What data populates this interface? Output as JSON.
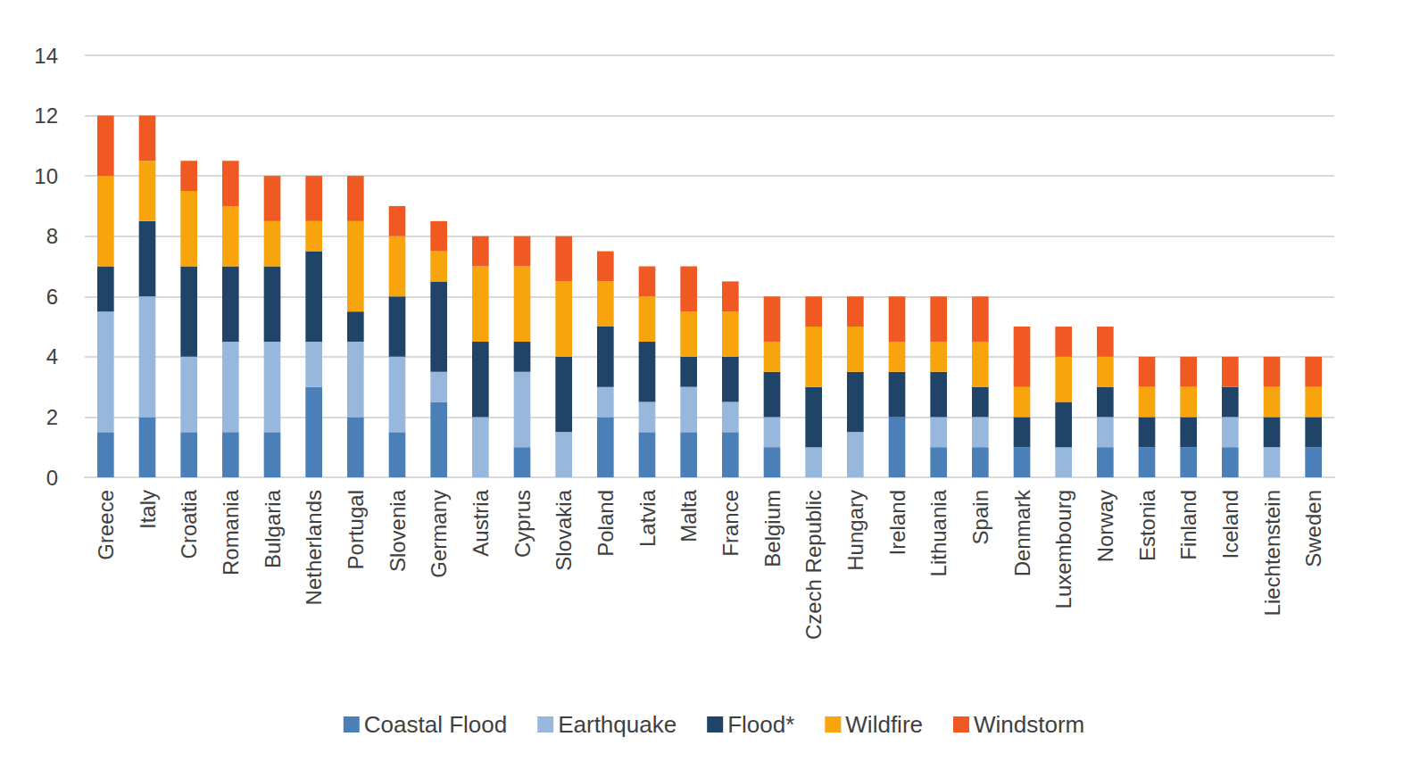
{
  "chart_data": {
    "type": "bar",
    "stacked": true,
    "grid": true,
    "legend": "bottom",
    "categories": [
      "Greece",
      "Italy",
      "Croatia",
      "Romania",
      "Bulgaria",
      "Netherlands",
      "Portugal",
      "Slovenia",
      "Germany",
      "Austria",
      "Cyprus",
      "Slovakia",
      "Poland",
      "Latvia",
      "Malta",
      "France",
      "Belgium",
      "Czech Republic",
      "Hungary",
      "Ireland",
      "Lithuania",
      "Spain",
      "Denmark",
      "Luxembourg",
      "Norway",
      "Estonia",
      "Finland",
      "Iceland",
      "Liechtenstein",
      "Sweden"
    ],
    "ylim": [
      0,
      14
    ],
    "yticks": [
      0,
      2,
      4,
      6,
      8,
      10,
      12,
      14
    ],
    "series": [
      {
        "name": "Coastal Flood",
        "color": "#4a7fb8",
        "values": [
          1.5,
          2,
          1.5,
          1.5,
          1.5,
          3,
          2,
          1.5,
          2.5,
          0,
          1,
          0,
          2,
          1.5,
          1.5,
          1.5,
          1,
          0,
          0,
          2,
          1,
          1,
          1,
          0,
          1,
          1,
          1,
          1,
          0,
          1
        ]
      },
      {
        "name": "Earthquake",
        "color": "#97b7dc",
        "values": [
          4,
          4,
          2.5,
          3,
          3,
          1.5,
          2.5,
          2.5,
          1,
          2,
          2.5,
          1.5,
          1,
          1,
          1.5,
          1,
          1,
          1,
          1.5,
          0,
          1,
          1,
          0,
          1,
          1,
          0,
          0,
          1,
          1,
          0
        ]
      },
      {
        "name": "Flood*",
        "color": "#1f4467",
        "values": [
          1.5,
          2.5,
          3,
          2.5,
          2.5,
          3,
          1,
          2,
          3,
          2.5,
          1,
          2.5,
          2,
          2,
          1,
          1.5,
          1.5,
          2,
          2,
          1.5,
          1.5,
          1,
          1,
          1.5,
          1,
          1,
          1,
          1,
          1,
          1
        ]
      },
      {
        "name": "Wildfire",
        "color": "#f8a40c",
        "values": [
          3,
          2,
          2.5,
          2,
          1.5,
          1,
          3,
          2,
          1,
          2.5,
          2.5,
          2.5,
          1.5,
          1.5,
          1.5,
          1.5,
          1,
          2,
          1.5,
          1,
          1,
          1.5,
          1,
          1.5,
          1,
          1,
          1,
          0,
          1,
          1
        ]
      },
      {
        "name": "Windstorm",
        "color": "#f05a22",
        "values": [
          2,
          1.5,
          1,
          1.5,
          1.5,
          1.5,
          1.5,
          1,
          1,
          1,
          1,
          1.5,
          1,
          1,
          1.5,
          1,
          1.5,
          1,
          1,
          1.5,
          1.5,
          1.5,
          2,
          1,
          1,
          1,
          1,
          1,
          1,
          1
        ]
      }
    ]
  }
}
